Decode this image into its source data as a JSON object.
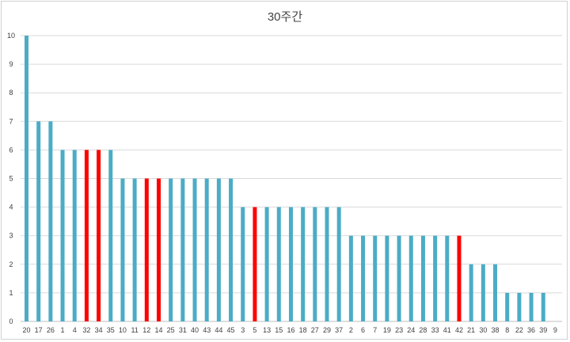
{
  "chart_data": {
    "type": "bar",
    "title": "30주간",
    "xlabel": "",
    "ylabel": "",
    "ylim": [
      0,
      10
    ],
    "yticks": [
      0,
      1,
      2,
      3,
      4,
      5,
      6,
      7,
      8,
      9,
      10
    ],
    "grid": true,
    "legend": "none",
    "colors": {
      "default": "#4bacc6",
      "highlight": "#ff0000"
    },
    "categories": [
      "20",
      "17",
      "26",
      "1",
      "4",
      "32",
      "34",
      "35",
      "10",
      "11",
      "12",
      "14",
      "25",
      "31",
      "40",
      "43",
      "44",
      "45",
      "3",
      "5",
      "13",
      "15",
      "16",
      "18",
      "27",
      "29",
      "37",
      "2",
      "6",
      "7",
      "19",
      "23",
      "24",
      "28",
      "33",
      "41",
      "42",
      "21",
      "30",
      "38",
      "8",
      "22",
      "36",
      "39",
      "9"
    ],
    "values": [
      10,
      7,
      7,
      6,
      6,
      6,
      6,
      6,
      5,
      5,
      5,
      5,
      5,
      5,
      5,
      5,
      5,
      5,
      4,
      4,
      4,
      4,
      4,
      4,
      4,
      4,
      4,
      3,
      3,
      3,
      3,
      3,
      3,
      3,
      3,
      3,
      3,
      2,
      2,
      2,
      1,
      1,
      1,
      1,
      0
    ],
    "highlighted": [
      "32",
      "34",
      "12",
      "14",
      "5",
      "42"
    ]
  }
}
